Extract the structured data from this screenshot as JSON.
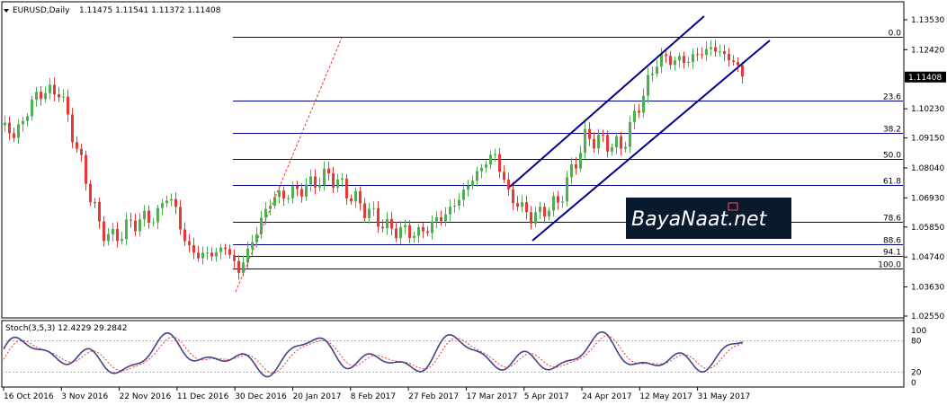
{
  "header": {
    "symbol": "EURUSD,Daily",
    "ohlc": "1.11475 1.11541 1.11372 1.11408"
  },
  "price_axis": {
    "labels": [
      "1.13530",
      "1.12420",
      "1.11408",
      "1.10230",
      "1.09150",
      "1.08040",
      "1.06930",
      "1.05850",
      "1.04740",
      "1.03630",
      "1.02550"
    ],
    "current_price": "1.11408"
  },
  "fib_levels": [
    {
      "label": "0.0",
      "price": 1.129
    },
    {
      "label": "23.6",
      "price": 1.1053
    },
    {
      "label": "38.2",
      "price": 1.0933
    },
    {
      "label": "50.0",
      "price": 1.0837
    },
    {
      "label": "61.8",
      "price": 1.0741
    },
    {
      "label": "78.6",
      "price": 1.0603
    },
    {
      "label": "88.6",
      "price": 1.0521
    },
    {
      "label": "94.1",
      "price": 1.0478
    },
    {
      "label": "100.0",
      "price": 1.043
    }
  ],
  "stochastic": {
    "label": "Stoch(3,5,3) 12.4229 29.2842",
    "levels": [
      "100",
      "80",
      "20",
      "0"
    ]
  },
  "date_axis": [
    "16 Oct 2016",
    "3 Nov 2016",
    "22 Nov 2016",
    "11 Dec 2016",
    "30 Dec 2016",
    "20 Jan 2017",
    "8 Feb 2017",
    "27 Feb 2017",
    "17 Mar 2017",
    "5 Apr 2017",
    "24 Apr 2017",
    "12 May 2017",
    "31 May 2017"
  ],
  "watermark": {
    "text": "BayaNaat.net"
  },
  "colors": {
    "bull": "#4caf50",
    "bear": "#e53935",
    "fib": "#00008b",
    "channel": "#00008b",
    "stoch_main": "#4b3f8a",
    "stoch_signal": "#e53935",
    "price_tag": "#000000"
  }
}
